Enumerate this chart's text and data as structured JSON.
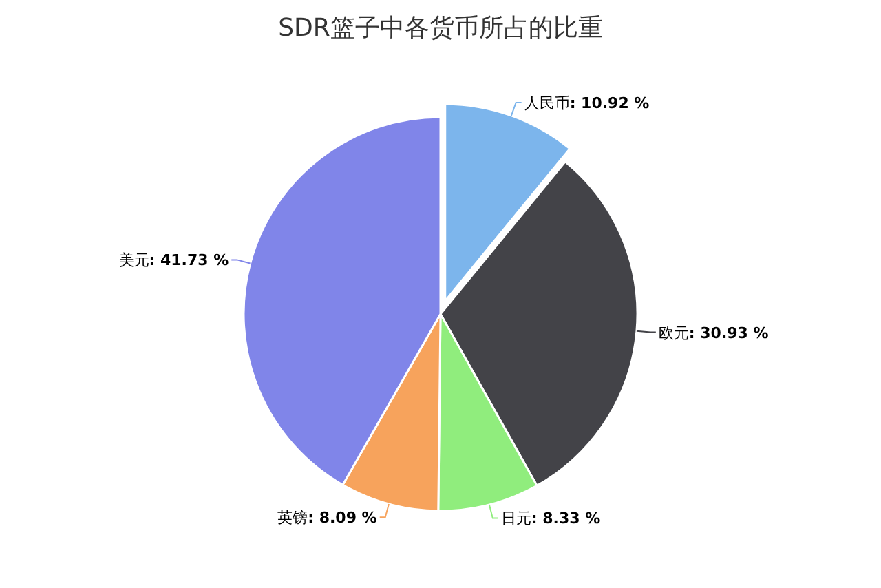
{
  "chart_data": {
    "type": "pie",
    "title": "SDR篮子中各货币所占的比重",
    "categories": [
      "人民币",
      "欧元",
      "日元",
      "英镑",
      "美元"
    ],
    "values": [
      10.92,
      30.93,
      8.33,
      8.09,
      41.73
    ],
    "value_labels": [
      ": 10.92 %",
      ": 30.93 %",
      ": 8.33 %",
      ": 8.09 %",
      ": 41.73 %"
    ],
    "colors": [
      "#7cb5ec",
      "#434348",
      "#90ed7d",
      "#f7a35c",
      "#8085e9"
    ],
    "legend": false
  }
}
